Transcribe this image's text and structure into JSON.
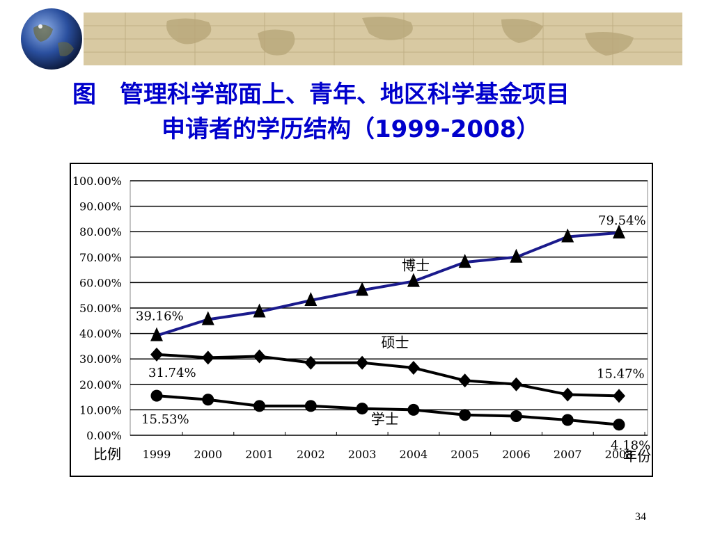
{
  "slide": {
    "title_line1": "图　管理科学部面上、青年、地区科学基金项目",
    "title_line2": "申请者的学历结构（1999-2008）",
    "page_number": "34"
  },
  "colors": {
    "title": "#0000cc",
    "banner": "#d8c9a2",
    "phd_line": "#1a1a8c",
    "other_lines": "#000000"
  },
  "chart_data": {
    "type": "line",
    "x": [
      "1999",
      "2000",
      "2001",
      "2002",
      "2003",
      "2004",
      "2005",
      "2006",
      "2007",
      "2008"
    ],
    "ylim": [
      0,
      100
    ],
    "yticks": [
      "0.00%",
      "10.00%",
      "20.00%",
      "30.00%",
      "40.00%",
      "50.00%",
      "60.00%",
      "70.00%",
      "80.00%",
      "90.00%",
      "100.00%"
    ],
    "xlabel": "年份",
    "ylabel": "比例",
    "grid": true,
    "series": [
      {
        "name": "博士",
        "marker": "triangle",
        "values": [
          39.16,
          45.5,
          48.5,
          53,
          57,
          60.5,
          68,
          70,
          78,
          79.54
        ],
        "start_label": "39.16%",
        "end_label": "79.54%"
      },
      {
        "name": "硕士",
        "marker": "diamond",
        "values": [
          31.74,
          30.5,
          31,
          28.5,
          28.5,
          26.5,
          21.5,
          20,
          16,
          15.47
        ],
        "start_label": "31.74%",
        "end_label": "15.47%"
      },
      {
        "name": "学士",
        "marker": "circle",
        "values": [
          15.53,
          14,
          11.5,
          11.5,
          10.5,
          10,
          8,
          7.5,
          6,
          4.18
        ],
        "start_label": "15.53%",
        "end_label": "4.18%"
      }
    ]
  }
}
